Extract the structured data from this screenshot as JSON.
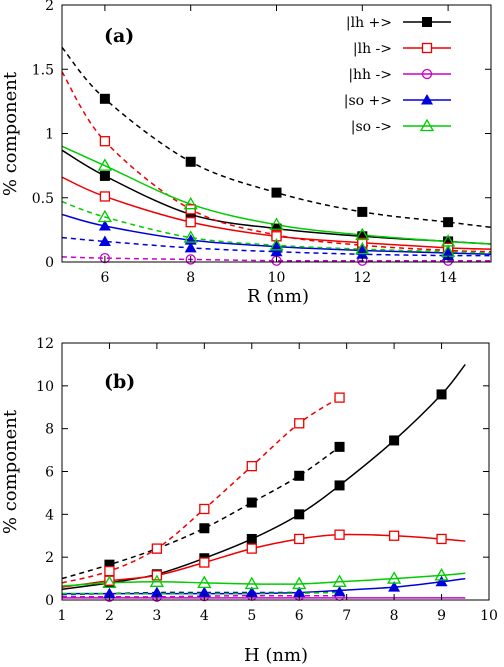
{
  "chart_data": [
    {
      "type": "line",
      "panel_label": "(a)",
      "xlabel": "R (nm)",
      "ylabel": "% component",
      "xlim": [
        5,
        15
      ],
      "ylim": [
        0,
        2
      ],
      "xticks": [
        "6",
        "8",
        "10",
        "12",
        "14"
      ],
      "yticks": [
        "0",
        "0.5",
        "1",
        "1.5",
        "2"
      ],
      "grid": false,
      "legend_position": "top-right",
      "series": [
        {
          "name": "|lh +>",
          "color": "#000000",
          "marker": "filled-square",
          "line": "dashed",
          "x": [
            5,
            6,
            8,
            10,
            12,
            14,
            15
          ],
          "values": [
            1.67,
            1.27,
            0.78,
            0.54,
            0.39,
            0.31,
            0.27
          ],
          "marker_x": [
            6,
            8,
            10,
            12,
            14
          ]
        },
        {
          "name": "|lh +>",
          "color": "#000000",
          "marker": "filled-square",
          "line": "solid",
          "x": [
            5,
            6,
            8,
            10,
            12,
            14,
            15
          ],
          "values": [
            0.87,
            0.67,
            0.37,
            0.26,
            0.2,
            0.16,
            0.14
          ],
          "marker_x": [
            6,
            8,
            10,
            12,
            14
          ]
        },
        {
          "name": "|lh ->",
          "color": "#ee0000",
          "marker": "open-square",
          "line": "dashed",
          "x": [
            5,
            6,
            8,
            10,
            12,
            14,
            15
          ],
          "values": [
            1.48,
            0.94,
            0.41,
            0.21,
            0.13,
            0.09,
            0.08
          ],
          "marker_x": [
            6,
            8,
            10,
            12,
            14
          ]
        },
        {
          "name": "|lh ->",
          "color": "#ee0000",
          "marker": "open-square",
          "line": "solid",
          "x": [
            5,
            6,
            8,
            10,
            12,
            14,
            15
          ],
          "values": [
            0.66,
            0.51,
            0.31,
            0.2,
            0.15,
            0.11,
            0.1
          ],
          "marker_x": [
            6,
            8,
            10,
            12,
            14
          ]
        },
        {
          "name": "|hh ->",
          "color": "#cc00cc",
          "marker": "open-circle",
          "line": "dashed",
          "x": [
            5,
            6,
            8,
            10,
            12,
            14,
            15
          ],
          "values": [
            0.04,
            0.03,
            0.02,
            0.01,
            0.01,
            0.01,
            0.01
          ],
          "marker_x": [
            6,
            8,
            10,
            12,
            14
          ]
        },
        {
          "name": "|so +>",
          "color": "#0000dd",
          "marker": "filled-triangle",
          "line": "dashed",
          "x": [
            5,
            6,
            8,
            10,
            12,
            14,
            15
          ],
          "values": [
            0.19,
            0.16,
            0.11,
            0.08,
            0.06,
            0.05,
            0.05
          ],
          "marker_x": [
            6,
            8,
            10,
            12,
            14
          ]
        },
        {
          "name": "|so +>",
          "color": "#0000dd",
          "marker": "filled-triangle",
          "line": "solid",
          "x": [
            5,
            6,
            8,
            10,
            12,
            14,
            15
          ],
          "values": [
            0.37,
            0.28,
            0.17,
            0.12,
            0.09,
            0.07,
            0.06
          ],
          "marker_x": [
            6,
            8,
            10,
            12,
            14
          ]
        },
        {
          "name": "|so ->",
          "color": "#00cc00",
          "marker": "open-triangle",
          "line": "dashed",
          "x": [
            5,
            6,
            8,
            10,
            12,
            14,
            15
          ],
          "values": [
            0.47,
            0.35,
            0.19,
            0.13,
            0.1,
            0.08,
            0.07
          ],
          "marker_x": [
            6,
            8,
            10,
            12,
            14
          ]
        },
        {
          "name": "|so ->",
          "color": "#00cc00",
          "marker": "open-triangle",
          "line": "solid",
          "x": [
            5,
            6,
            8,
            10,
            12,
            14,
            15
          ],
          "values": [
            0.9,
            0.75,
            0.45,
            0.29,
            0.21,
            0.16,
            0.14
          ],
          "marker_x": [
            6,
            8,
            10,
            12,
            14
          ]
        }
      ],
      "legend": [
        {
          "label": "|lh +>",
          "color": "#000000",
          "marker": "filled-square"
        },
        {
          "label": "|lh ->",
          "color": "#ee0000",
          "marker": "open-square"
        },
        {
          "label": "|hh ->",
          "color": "#cc00cc",
          "marker": "open-circle"
        },
        {
          "label": "|so +>",
          "color": "#0000dd",
          "marker": "filled-triangle"
        },
        {
          "label": "|so ->",
          "color": "#00cc00",
          "marker": "open-triangle"
        }
      ]
    },
    {
      "type": "line",
      "panel_label": "(b)",
      "xlabel": "H (nm)",
      "ylabel": "% component",
      "xlim": [
        1,
        10
      ],
      "ylim": [
        0,
        12
      ],
      "xticks": [
        "1",
        "2",
        "3",
        "4",
        "5",
        "6",
        "7",
        "8",
        "9",
        "10"
      ],
      "yticks": [
        "0",
        "2",
        "4",
        "6",
        "8",
        "10",
        "12"
      ],
      "grid": false,
      "series": [
        {
          "name": "|lh +>",
          "color": "#000000",
          "marker": "filled-square",
          "line": "dashed",
          "x": [
            1,
            2,
            3,
            4,
            5,
            6,
            6.85
          ],
          "values": [
            1.0,
            1.65,
            2.4,
            3.35,
            4.55,
            5.8,
            7.15
          ],
          "marker_x": [
            2,
            3,
            4,
            5,
            6,
            6.85
          ]
        },
        {
          "name": "|lh +>",
          "color": "#000000",
          "marker": "filled-square",
          "line": "solid",
          "x": [
            1,
            2,
            3,
            4,
            5,
            6,
            6.85,
            8,
            9,
            9.5
          ],
          "values": [
            0.5,
            0.8,
            1.2,
            1.95,
            2.85,
            4.0,
            5.35,
            7.45,
            9.6,
            11.0
          ],
          "marker_x": [
            2,
            3,
            4,
            5,
            6,
            6.85,
            8,
            9
          ]
        },
        {
          "name": "|lh ->",
          "color": "#ee0000",
          "marker": "open-square",
          "line": "dashed",
          "x": [
            1,
            2,
            3,
            4,
            5,
            6,
            6.85
          ],
          "values": [
            0.8,
            1.35,
            2.4,
            4.25,
            6.25,
            8.25,
            9.45
          ],
          "marker_x": [
            2,
            3,
            4,
            5,
            6,
            6.85
          ]
        },
        {
          "name": "|lh ->",
          "color": "#ee0000",
          "marker": "open-square",
          "line": "solid",
          "x": [
            1,
            2,
            3,
            4,
            5,
            6,
            6.85,
            8,
            9,
            9.5
          ],
          "values": [
            0.6,
            0.9,
            1.15,
            1.75,
            2.4,
            2.85,
            3.05,
            3.0,
            2.85,
            2.75
          ],
          "marker_x": [
            2,
            3,
            4,
            5,
            6,
            6.85,
            8,
            9
          ]
        },
        {
          "name": "|hh ->",
          "color": "#cc00cc",
          "marker": "open-circle",
          "line": "dashed",
          "x": [
            1,
            2,
            3,
            4,
            5,
            6,
            6.85
          ],
          "values": [
            0.15,
            0.15,
            0.15,
            0.18,
            0.2,
            0.2,
            0.2
          ],
          "marker_x": [
            2,
            3,
            4,
            5,
            6,
            6.85
          ]
        },
        {
          "name": "|hh ->",
          "color": "#cc00cc",
          "marker": "open-circle",
          "line": "solid",
          "x": [
            1,
            2,
            3,
            4,
            5,
            6,
            6.85,
            8,
            9,
            9.5
          ],
          "values": [
            0.1,
            0.1,
            0.1,
            0.1,
            0.1,
            0.1,
            0.1,
            0.1,
            0.1,
            0.1
          ],
          "marker_x": []
        },
        {
          "name": "|so +>",
          "color": "#0000dd",
          "marker": "filled-triangle",
          "line": "dashed",
          "x": [
            1,
            2,
            3,
            4,
            5,
            6,
            6.85
          ],
          "values": [
            0.25,
            0.3,
            0.35,
            0.35,
            0.35,
            0.35,
            0.38
          ],
          "marker_x": [
            2,
            3,
            4,
            5,
            6,
            6.85
          ]
        },
        {
          "name": "|so +>",
          "color": "#0000dd",
          "marker": "filled-triangle",
          "line": "solid",
          "x": [
            1,
            2,
            3,
            4,
            5,
            6,
            6.85,
            8,
            9,
            9.5
          ],
          "values": [
            0.3,
            0.3,
            0.3,
            0.3,
            0.3,
            0.35,
            0.45,
            0.6,
            0.85,
            1.0
          ],
          "marker_x": [
            8,
            9
          ]
        },
        {
          "name": "|so ->",
          "color": "#00cc00",
          "marker": "open-triangle",
          "line": "dashed",
          "x": [
            1,
            2,
            3,
            4,
            5,
            6,
            6.85
          ],
          "values": [
            0.3,
            0.3,
            0.3,
            0.3,
            0.3,
            0.32,
            0.35
          ],
          "marker_x": []
        },
        {
          "name": "|so ->",
          "color": "#00cc00",
          "marker": "open-triangle",
          "line": "solid",
          "x": [
            1,
            2,
            3,
            4,
            5,
            6,
            6.85,
            8,
            9,
            9.5
          ],
          "values": [
            0.65,
            0.8,
            0.85,
            0.8,
            0.75,
            0.75,
            0.85,
            1.0,
            1.15,
            1.25
          ],
          "marker_x": [
            2,
            3,
            4,
            5,
            6,
            6.85,
            8,
            9
          ]
        }
      ]
    }
  ]
}
